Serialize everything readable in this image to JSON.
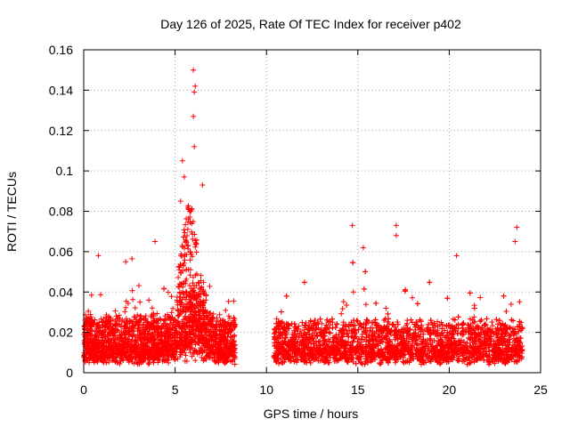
{
  "chart_data": {
    "type": "scatter",
    "title": "Day 126 of 2025, Rate Of TEC Index for receiver p402",
    "xlabel": "GPS time / hours",
    "ylabel": "ROTI / TECUs",
    "xlim": [
      0,
      25
    ],
    "ylim": [
      0,
      0.16
    ],
    "x_ticks": [
      "0",
      "5",
      "10",
      "15",
      "20",
      "25"
    ],
    "y_ticks": [
      "0",
      "0.02",
      "0.04",
      "0.06",
      "0.08",
      "0.1",
      "0.12",
      "0.14",
      "0.16"
    ],
    "grid": true,
    "marker": "plus",
    "series_color": "#ff0000",
    "data_gap_hours": [
      8.3,
      10.4
    ],
    "notable_points": [
      {
        "x": 6.0,
        "y": 0.15
      },
      {
        "x": 6.1,
        "y": 0.142
      },
      {
        "x": 6.05,
        "y": 0.139
      },
      {
        "x": 6.0,
        "y": 0.127
      },
      {
        "x": 6.05,
        "y": 0.112
      },
      {
        "x": 5.4,
        "y": 0.105
      },
      {
        "x": 5.5,
        "y": 0.097
      },
      {
        "x": 6.5,
        "y": 0.093
      },
      {
        "x": 5.3,
        "y": 0.085
      },
      {
        "x": 5.8,
        "y": 0.08
      },
      {
        "x": 14.7,
        "y": 0.073
      },
      {
        "x": 17.1,
        "y": 0.073
      },
      {
        "x": 17.1,
        "y": 0.068
      },
      {
        "x": 23.7,
        "y": 0.072
      },
      {
        "x": 23.6,
        "y": 0.065
      },
      {
        "x": 15.3,
        "y": 0.062
      },
      {
        "x": 20.4,
        "y": 0.058
      },
      {
        "x": 0.8,
        "y": 0.058
      },
      {
        "x": 3.9,
        "y": 0.065
      },
      {
        "x": 2.3,
        "y": 0.055
      }
    ],
    "segments": [
      {
        "x_start": 0.0,
        "x_end": 8.3,
        "base": 0.012,
        "spread": 0.02
      },
      {
        "x_start": 10.4,
        "x_end": 24.0,
        "base": 0.011,
        "spread": 0.018
      }
    ]
  }
}
